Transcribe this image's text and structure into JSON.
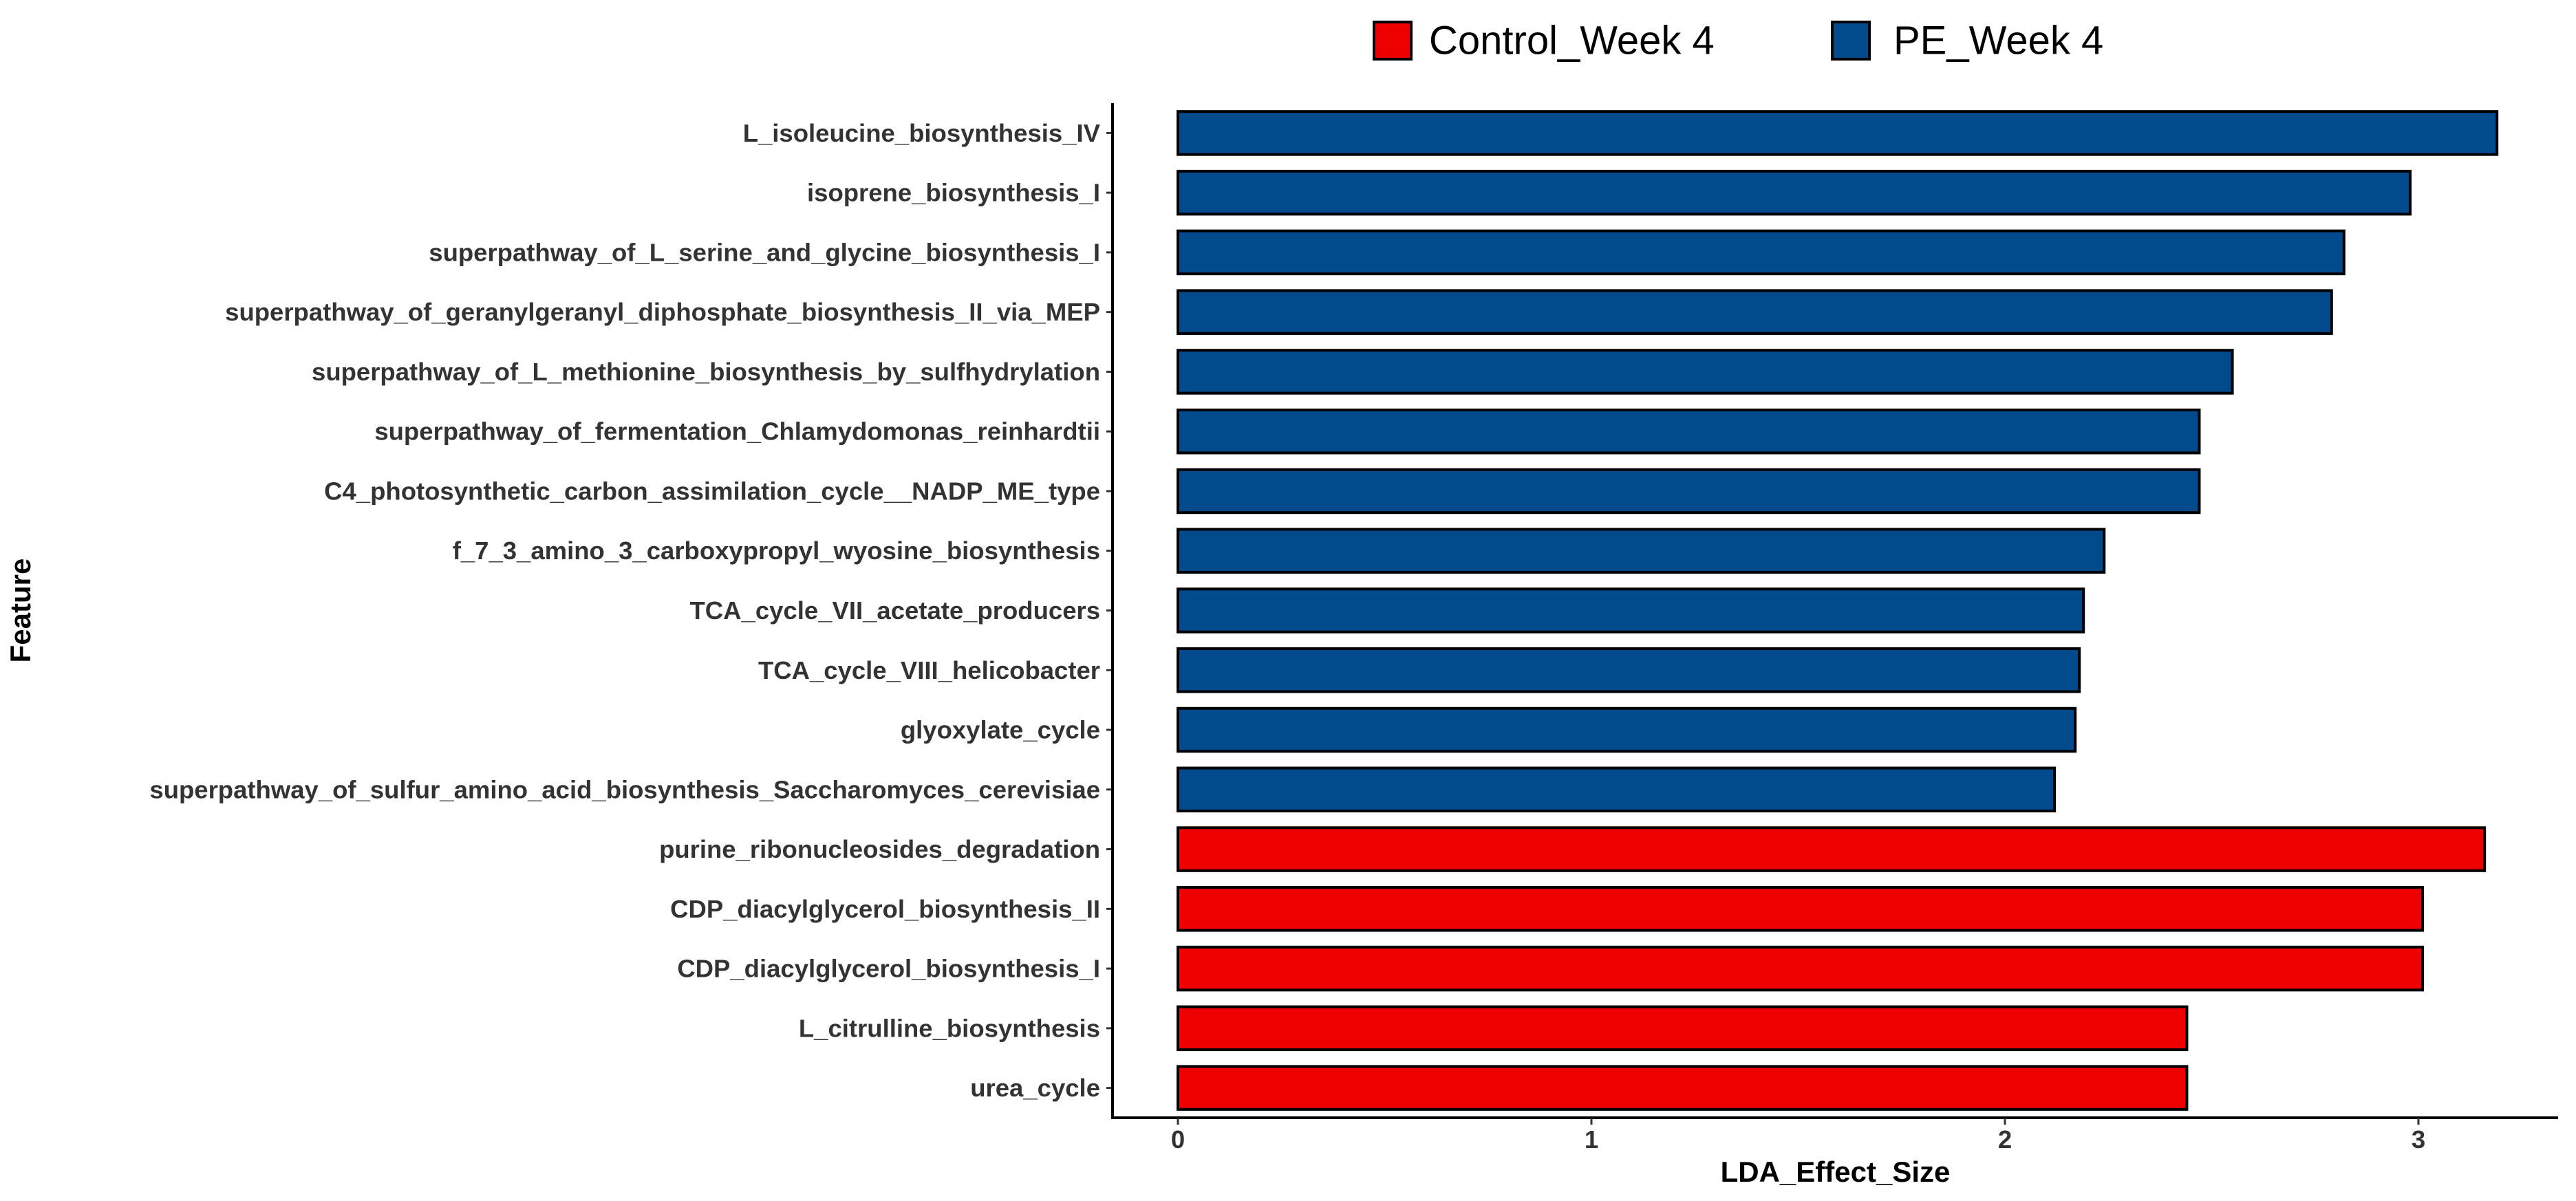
{
  "chart_data": {
    "type": "bar",
    "orientation": "horizontal",
    "title": "",
    "xlabel": "LDA_Effect_Size",
    "ylabel": "Feature",
    "xlim": [
      -0.15,
      3.35
    ],
    "xticks": [
      0,
      1,
      2,
      3
    ],
    "grid": false,
    "legend_position": "top",
    "legend": [
      {
        "name": "Control_Week 4",
        "color": "#EE0000"
      },
      {
        "name": "PE_Week 4",
        "color": "#014A8C"
      }
    ],
    "bars": [
      {
        "feature": "L_isoleucine_biosynthesis_IV",
        "value": 3.19,
        "group": "PE_Week 4"
      },
      {
        "feature": "isoprene_biosynthesis_I",
        "value": 2.98,
        "group": "PE_Week 4"
      },
      {
        "feature": "superpathway_of_L_serine_and_glycine_biosynthesis_I",
        "value": 2.82,
        "group": "PE_Week 4"
      },
      {
        "feature": "superpathway_of_geranylgeranyl_diphosphate_biosynthesis_II_via_MEP",
        "value": 2.79,
        "group": "PE_Week 4"
      },
      {
        "feature": "superpathway_of_L_methionine_biosynthesis_by_sulfhydrylation",
        "value": 2.55,
        "group": "PE_Week 4"
      },
      {
        "feature": "superpathway_of_fermentation_Chlamydomonas_reinhardtii",
        "value": 2.47,
        "group": "PE_Week 4"
      },
      {
        "feature": "C4_photosynthetic_carbon_assimilation_cycle__NADP_ME_type",
        "value": 2.47,
        "group": "PE_Week 4"
      },
      {
        "feature": "f_7_3_amino_3_carboxypropyl_wyosine_biosynthesis",
        "value": 2.24,
        "group": "PE_Week 4"
      },
      {
        "feature": "TCA_cycle_VII_acetate_producers",
        "value": 2.19,
        "group": "PE_Week 4"
      },
      {
        "feature": "TCA_cycle_VIII_helicobacter",
        "value": 2.18,
        "group": "PE_Week 4"
      },
      {
        "feature": "glyoxylate_cycle",
        "value": 2.17,
        "group": "PE_Week 4"
      },
      {
        "feature": "superpathway_of_sulfur_amino_acid_biosynthesis_Saccharomyces_cerevisiae",
        "value": 2.12,
        "group": "PE_Week 4"
      },
      {
        "feature": "purine_ribonucleosides_degradation",
        "value": 3.16,
        "group": "Control_Week 4"
      },
      {
        "feature": "CDP_diacylglycerol_biosynthesis_II",
        "value": 3.01,
        "group": "Control_Week 4"
      },
      {
        "feature": "CDP_diacylglycerol_biosynthesis_I",
        "value": 3.01,
        "group": "Control_Week 4"
      },
      {
        "feature": "L_citrulline_biosynthesis",
        "value": 2.44,
        "group": "Control_Week 4"
      },
      {
        "feature": "urea_cycle",
        "value": 2.44,
        "group": "Control_Week 4"
      }
    ]
  }
}
